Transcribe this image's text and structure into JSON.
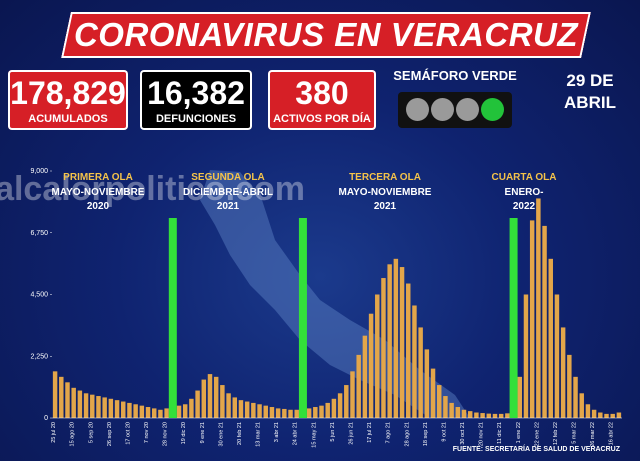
{
  "header": {
    "title": "CORONAVIRUS EN VERACRUZ",
    "date_lines": [
      "29 DE",
      "ABRIL"
    ],
    "semaforo": "SEMÁFORO VERDE"
  },
  "stats": [
    {
      "value": "178,829",
      "label": "ACUMULADOS"
    },
    {
      "value": "16,382",
      "label": "DEFUNCIONES"
    },
    {
      "value": "380",
      "label": "ACTIVOS POR DÍA"
    }
  ],
  "chart_data": {
    "type": "bar",
    "color": "#e3a64a",
    "watermark": "alcalorpolitico.com",
    "source": "FUENTE: SECRETARÍA DE SALUD DE VERACRUZ",
    "annotations": [
      {
        "title": "PRIMERA OLA",
        "lines": [
          "MAYO-NOVIEMBRE",
          "2020"
        ]
      },
      {
        "title": "SEGUNDA OLA",
        "lines": [
          "DICIEMBRE-ABRIL",
          "2021"
        ]
      },
      {
        "title": "TERCERA OLA",
        "lines": [
          "MAYO-NOVIEMBRE",
          "2021"
        ]
      },
      {
        "title": "CUARTA OLA",
        "lines": [
          "ENERO-",
          "2022"
        ]
      }
    ],
    "categories": [
      "25 jul 20",
      null,
      null,
      "15 ago 20",
      null,
      null,
      "5 sep 20",
      null,
      null,
      "26 sep 20",
      null,
      null,
      "17 oct 20",
      null,
      null,
      "7 nov 20",
      null,
      null,
      "28 nov 20",
      null,
      null,
      "19 dic 20",
      null,
      null,
      "9 ene 21",
      null,
      null,
      "30 ene 21",
      null,
      null,
      "20 feb 21",
      null,
      null,
      "13 mar 21",
      null,
      null,
      "3 abr 21",
      null,
      null,
      "24 abr 21",
      null,
      null,
      "15 may 21",
      null,
      null,
      "5 jun 21",
      null,
      null,
      "26 jun 21",
      null,
      null,
      "17 jul 21",
      null,
      null,
      "7 ago 21",
      null,
      null,
      "28 ago 21",
      null,
      null,
      "18 sep 21",
      null,
      null,
      "9 oct 21",
      null,
      null,
      "30 oct 21",
      null,
      null,
      "20 nov 21",
      null,
      null,
      "11 dic 21",
      null,
      null,
      "1 ene 22",
      null,
      null,
      "22 ene 22",
      null,
      null,
      "12 feb 22",
      null,
      null,
      "5 mar 22",
      null,
      null,
      "26 mar 22",
      null,
      null,
      "16 abr 22",
      null
    ],
    "values": [
      1700,
      1500,
      1300,
      1100,
      1000,
      900,
      850,
      800,
      750,
      700,
      650,
      600,
      550,
      500,
      450,
      400,
      350,
      300,
      350,
      400,
      450,
      500,
      700,
      1000,
      1400,
      1600,
      1500,
      1200,
      900,
      750,
      650,
      600,
      550,
      500,
      450,
      400,
      350,
      330,
      300,
      300,
      320,
      350,
      400,
      450,
      550,
      700,
      900,
      1200,
      1700,
      2300,
      3000,
      3800,
      4500,
      5100,
      5600,
      5800,
      5500,
      4900,
      4100,
      3300,
      2500,
      1800,
      1200,
      800,
      550,
      400,
      300,
      250,
      200,
      180,
      160,
      150,
      150,
      170,
      300,
      1500,
      4500,
      7200,
      8000,
      7000,
      5800,
      4500,
      3300,
      2300,
      1500,
      900,
      500,
      300,
      200,
      150,
      150,
      200
    ],
    "ylim": [
      0,
      9000
    ],
    "yticks": [
      0,
      {
        "value": 2250,
        "label": "2,250"
      },
      {
        "value": 4500,
        "label": "4,500"
      },
      {
        "value": 6750,
        "label": "6,750"
      },
      {
        "value": 9000,
        "label": "9,000"
      }
    ]
  }
}
